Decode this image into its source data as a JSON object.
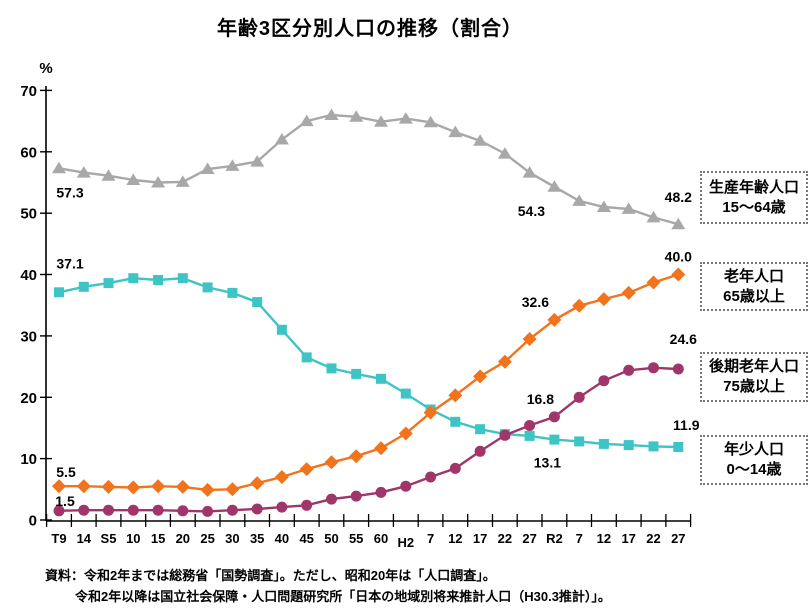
{
  "title": "年齢3区分別人口の推移（割合）",
  "chart_data": {
    "type": "line",
    "title": "年齢3区分別人口の推移（割合）",
    "ylabel": "%",
    "ylim": [
      0,
      70
    ],
    "grid": false,
    "legend_position": "right",
    "y_ticks": [
      70,
      60,
      50,
      40,
      30,
      20,
      10,
      0
    ],
    "categories": [
      "T9",
      "14",
      "S5",
      "10",
      "15",
      "20",
      "25",
      "30",
      "35",
      "40",
      "45",
      "50",
      "55",
      "60",
      "H2",
      "7",
      "12",
      "17",
      "22",
      "27",
      "R2",
      "7",
      "12",
      "17",
      "22",
      "27"
    ],
    "series": [
      {
        "key": "working-age",
        "name": "生産年齢人口 15～64歳",
        "color": "#a8a8a8",
        "marker": "triangle",
        "values": [
          57.3,
          56.6,
          56.1,
          55.4,
          55.0,
          55.1,
          57.2,
          57.7,
          58.4,
          62.0,
          65.0,
          66.0,
          65.7,
          64.9,
          65.4,
          64.8,
          63.2,
          61.8,
          59.7,
          56.6,
          54.3,
          52.0,
          51.0,
          50.7,
          49.3,
          48.2
        ],
        "point_labels": [
          {
            "index": 0,
            "text": "57.3",
            "dx": 11,
            "dy": 24
          },
          {
            "index": 20,
            "text": "54.3",
            "dx": -23,
            "dy": 24
          },
          {
            "index": 25,
            "text": "48.2",
            "dx": 0,
            "dy": -27
          }
        ]
      },
      {
        "key": "young",
        "name": "年少人口 0～14歳",
        "color": "#3ec4c4",
        "marker": "square",
        "values": [
          37.1,
          38.0,
          38.6,
          39.4,
          39.1,
          39.4,
          37.9,
          37.0,
          35.5,
          31.0,
          26.5,
          24.7,
          23.8,
          23.0,
          20.6,
          18.0,
          16.0,
          14.8,
          14.0,
          13.7,
          13.1,
          12.8,
          12.4,
          12.2,
          12.0,
          11.9
        ],
        "point_labels": [
          {
            "index": 0,
            "text": "37.1",
            "dx": 11,
            "dy": -29
          },
          {
            "index": 20,
            "text": "13.1",
            "dx": -7,
            "dy": 23
          },
          {
            "index": 25,
            "text": "11.9",
            "dx": 8,
            "dy": -22
          }
        ]
      },
      {
        "key": "elderly",
        "name": "老年人口 65歳以上",
        "color": "#f1731c",
        "marker": "diamond",
        "values": [
          5.5,
          5.5,
          5.4,
          5.3,
          5.5,
          5.4,
          4.9,
          5.0,
          6.0,
          7.0,
          8.3,
          9.4,
          10.4,
          11.7,
          14.1,
          17.5,
          20.3,
          23.4,
          25.8,
          29.5,
          32.6,
          34.9,
          36.0,
          37.0,
          38.7,
          40.0
        ],
        "point_labels": [
          {
            "index": 0,
            "text": "5.5",
            "dx": 7,
            "dy": -14
          },
          {
            "index": 20,
            "text": "32.6",
            "dx": -19,
            "dy": -18
          },
          {
            "index": 25,
            "text": "40.0",
            "dx": 0,
            "dy": -18
          }
        ]
      },
      {
        "key": "late-elderly",
        "name": "後期老年人口 75歳以上",
        "color": "#9f3568",
        "marker": "circle",
        "values": [
          1.5,
          1.6,
          1.6,
          1.6,
          1.6,
          1.5,
          1.4,
          1.6,
          1.8,
          2.1,
          2.4,
          3.4,
          3.9,
          4.5,
          5.5,
          7.0,
          8.4,
          11.2,
          13.8,
          15.4,
          16.8,
          20.0,
          22.7,
          24.4,
          24.8,
          24.6
        ],
        "point_labels": [
          {
            "index": 0,
            "text": "1.5",
            "dx": 6,
            "dy": -10
          },
          {
            "index": 20,
            "text": "16.8",
            "dx": -14,
            "dy": -18
          },
          {
            "index": 25,
            "text": "24.6",
            "dx": 5,
            "dy": -30
          }
        ]
      }
    ]
  },
  "legend": [
    {
      "line1": "生産年齢人口",
      "line2": "15～64歳"
    },
    {
      "line1": "老年人口",
      "line2": "65歳以上"
    },
    {
      "line1": "後期老年人口",
      "line2": "75歳以上"
    },
    {
      "line1": "年少人口",
      "line2": "0～14歳"
    }
  ],
  "source": {
    "line1": "資料：令和2年までは総務省「国勢調査」。ただし、昭和20年は「人口調査」。",
    "line2": "令和2年以降は国立社会保障・人口問題研究所「日本の地域別将来推計人口（H30.3推計）」。"
  }
}
